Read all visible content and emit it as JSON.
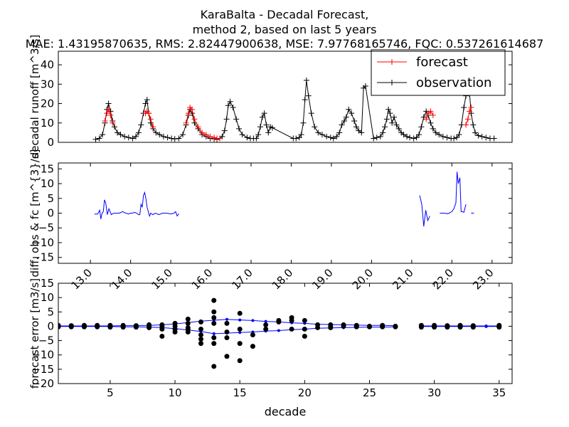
{
  "header": {
    "title_line1": "KaraBalta  - Decadal Forecast,",
    "title_line2": "method 2, based on last 5 years",
    "metrics": "MAE: 1.43195870635,   RMS: 2.82447900638,   MSE: 7.97768165746,   FQC: 0.537261614687"
  },
  "colors": {
    "forecast": "#ff0000",
    "observation": "#000000",
    "difference": "#0000ff",
    "error_points": "#000000",
    "error_band": "#0000ff"
  },
  "chart_data": [
    {
      "type": "line",
      "panel": "top",
      "ylabel": "decadal runoff [m^3/s]",
      "xlabel": "",
      "xlim": [
        2012.2,
        2023.5
      ],
      "ylim": [
        0,
        47
      ],
      "yticks": [
        0,
        10,
        20,
        30,
        40
      ],
      "grid": false,
      "legend": {
        "placement": "top-right",
        "entries": [
          "forecast",
          "observation"
        ]
      },
      "series": [
        {
          "name": "observation",
          "x": [
            2013.13,
            2013.22,
            2013.3,
            2013.36,
            2013.41,
            2013.45,
            2013.5,
            2013.55,
            2013.6,
            2013.67,
            2013.75,
            2013.85,
            2013.95,
            2014.05,
            2014.13,
            2014.2,
            2014.26,
            2014.32,
            2014.37,
            2014.41,
            2014.45,
            2014.5,
            2014.56,
            2014.63,
            2014.72,
            2014.82,
            2014.92,
            2015.02,
            2015.1,
            2015.2,
            2015.3,
            2015.38,
            2015.44,
            2015.48,
            2015.53,
            2015.59,
            2015.68,
            2015.78,
            2015.88,
            2015.98,
            2016.08,
            2016.15,
            2016.22,
            2016.28,
            2016.34,
            2016.39,
            2016.43,
            2016.48,
            2016.55,
            2016.63,
            2016.7,
            2016.78,
            2016.9,
            2016.98,
            2017.06,
            2017.13,
            2017.18,
            2017.23,
            2017.28,
            2017.33,
            2017.38,
            2017.43,
            2017.48,
            2017.53,
            2018.05,
            2018.12,
            2018.2,
            2018.25,
            2018.3,
            2018.34,
            2018.38,
            2018.43,
            2018.5,
            2018.58,
            2018.67,
            2018.77,
            2018.88,
            2018.98,
            2019.05,
            2019.13,
            2019.2,
            2019.26,
            2019.32,
            2019.37,
            2019.43,
            2019.5,
            2019.57,
            2019.62,
            2019.68,
            2019.75,
            2019.8,
            2019.85,
            2020.05,
            2020.13,
            2020.22,
            2020.28,
            2020.33,
            2020.38,
            2020.42,
            2020.46,
            2020.51,
            2020.56,
            2020.62,
            2020.68,
            2020.74,
            2020.8,
            2020.88,
            2020.95,
            2021.05,
            2021.12,
            2021.18,
            2021.24,
            2021.3,
            2021.36,
            2021.41,
            2021.47,
            2021.53,
            2021.6,
            2021.68,
            2021.78,
            2021.88,
            2021.98,
            2022.05,
            2022.12,
            2022.18,
            2022.24,
            2022.3,
            2022.35,
            2022.4,
            2022.44,
            2022.48,
            2022.53,
            2022.58,
            2022.66,
            2022.75,
            2022.85,
            2022.95,
            2023.05
          ],
          "y": [
            1.5,
            2,
            4,
            10,
            17,
            20,
            16,
            11,
            8,
            5,
            4,
            3,
            2.5,
            2,
            3,
            5,
            9,
            15,
            20,
            22,
            15,
            10,
            7,
            5,
            4,
            3,
            2.5,
            2,
            1.8,
            2,
            4,
            9,
            14,
            17,
            15,
            10,
            7,
            4,
            3,
            2,
            1.8,
            1.5,
            2,
            3,
            6,
            12,
            19,
            21,
            18,
            12,
            7,
            4,
            2.5,
            2,
            2,
            2,
            4,
            8,
            13,
            15,
            9,
            5,
            8,
            7.5,
            2,
            2,
            2.5,
            4,
            10,
            22,
            32,
            24,
            15,
            8,
            5,
            4,
            3,
            2.5,
            2,
            3,
            5,
            9,
            11,
            13,
            17,
            15,
            11,
            8,
            6,
            5,
            28,
            29,
            2,
            2.5,
            3,
            5,
            8,
            12,
            17,
            15,
            10,
            13,
            9,
            7,
            5,
            4,
            3,
            2.5,
            2,
            2.5,
            4,
            8,
            13,
            16,
            14,
            10,
            7,
            5,
            4,
            3,
            2.5,
            2,
            2,
            2.5,
            4,
            9,
            18,
            24,
            30,
            25,
            15,
            9,
            5,
            3.5,
            3,
            2.5,
            2,
            2
          ]
        },
        {
          "name": "forecast",
          "x": [
            2013.36,
            2013.41,
            2013.45,
            2013.5,
            2013.55,
            2014.37,
            2014.41,
            2014.45,
            2014.5,
            2014.56,
            2015.38,
            2015.44,
            2015.48,
            2015.53,
            2015.59,
            2015.68,
            2015.78,
            2015.88,
            2015.98,
            2016.08,
            2016.15,
            2016.22,
            2021.36,
            2021.41,
            2021.47,
            2021.53,
            2022.35,
            2022.4,
            2022.44,
            2022.48
          ],
          "y": [
            11,
            15,
            17,
            14,
            10,
            15,
            16,
            15,
            12,
            8,
            10,
            15,
            18,
            17,
            12,
            8,
            5,
            4,
            3,
            2.5,
            2,
            2,
            12,
            15,
            16,
            14,
            9,
            12,
            16,
            18
          ]
        }
      ]
    },
    {
      "type": "line",
      "panel": "middle",
      "ylabel": "diff. obs & fc [m^{3}/s]",
      "xlabel": "",
      "xlim": [
        2012.2,
        2023.5
      ],
      "ylim": [
        -17,
        17
      ],
      "yticks": [
        -15,
        -10,
        -5,
        0,
        5,
        10,
        15
      ],
      "xtick_labels": [
        "13.0",
        "14.0",
        "15.0",
        "16.0",
        "17.0",
        "18.0",
        "19.0",
        "20.0",
        "21.0",
        "22.0",
        "23.0"
      ],
      "xtick_values": [
        2013,
        2014,
        2015,
        2016,
        2017,
        2018,
        2019,
        2020,
        2021,
        2022,
        2023
      ],
      "grid": false,
      "series": [
        {
          "name": "",
          "segments": [
            {
              "x": [
                2013.1,
                2013.18,
                2013.23,
                2013.26,
                2013.29,
                2013.32,
                2013.35,
                2013.38,
                2013.42,
                2013.46,
                2013.52,
                2013.58,
                2013.65,
                2013.72,
                2013.8,
                2013.88,
                2013.95,
                2014.0,
                2014.05,
                2014.1,
                2014.15,
                2014.2,
                2014.23,
                2014.26,
                2014.29,
                2014.32,
                2014.35,
                2014.38,
                2014.41,
                2014.44,
                2014.47,
                2014.5,
                2014.55,
                2014.62,
                2014.7,
                2014.8,
                2014.9,
                2015.0,
                2015.08,
                2015.12,
                2015.16,
                2015.2
              ],
              "y": [
                -0.3,
                -0.3,
                1,
                -2,
                0,
                0.5,
                4.5,
                3.5,
                -0.5,
                1.5,
                -0.5,
                0,
                0,
                0,
                0.5,
                0,
                -0.3,
                0,
                0,
                0.3,
                0,
                -0.5,
                -0.5,
                3,
                2,
                6,
                7,
                5,
                2,
                0.5,
                -1,
                0,
                -0.5,
                0,
                -0.5,
                0,
                0,
                -0.3,
                0,
                0.5,
                -1,
                -0.2
              ]
            },
            {
              "x": [
                2021.2,
                2021.25,
                2021.3,
                2021.35,
                2021.4,
                2021.45
              ],
              "y": [
                6,
                3,
                -4.5,
                1,
                -2.5,
                -1
              ]
            },
            {
              "x": [
                2021.7,
                2021.8,
                2021.9,
                2022.0,
                2022.05,
                2022.1,
                2022.13,
                2022.16,
                2022.2,
                2022.23,
                2022.26,
                2022.3,
                2022.35
              ],
              "y": [
                0,
                0,
                -0.2,
                0.5,
                1.5,
                3.5,
                14,
                10,
                12,
                0.5,
                0.5,
                0.3,
                3
              ]
            },
            {
              "x": [
                2022.48,
                2022.55
              ],
              "y": [
                0,
                0
              ]
            }
          ]
        }
      ]
    },
    {
      "type": "scatter",
      "panel": "bottom",
      "ylabel": "forecast error [m3/s]",
      "xlabel": "decade",
      "xlim": [
        1,
        36
      ],
      "ylim": [
        -20,
        15
      ],
      "xticks": [
        5,
        10,
        15,
        20,
        25,
        30,
        35
      ],
      "yticks": [
        -20,
        -15,
        -10,
        -5,
        0,
        5,
        10,
        15
      ],
      "grid": false,
      "points": [
        [
          1,
          0
        ],
        [
          1,
          -0.2
        ],
        [
          1,
          0.3
        ],
        [
          2,
          0
        ],
        [
          2,
          -0.2
        ],
        [
          2,
          0.2
        ],
        [
          3,
          0
        ],
        [
          3,
          -0.2
        ],
        [
          3,
          0.3
        ],
        [
          4,
          0
        ],
        [
          4,
          -0.2
        ],
        [
          4,
          0.3
        ],
        [
          5,
          0
        ],
        [
          5,
          -0.3
        ],
        [
          5,
          0.3
        ],
        [
          6,
          0
        ],
        [
          6,
          -0.3
        ],
        [
          6,
          0.3
        ],
        [
          7,
          0
        ],
        [
          7,
          -0.3
        ],
        [
          7,
          0.2
        ],
        [
          8,
          0
        ],
        [
          8,
          -0.5
        ],
        [
          8,
          0.5
        ],
        [
          9,
          0
        ],
        [
          9,
          -3.5
        ],
        [
          9,
          -1
        ],
        [
          9,
          0.5
        ],
        [
          10,
          -1
        ],
        [
          10,
          -2
        ],
        [
          10,
          0
        ],
        [
          10,
          1
        ],
        [
          11,
          2.5
        ],
        [
          11,
          -1
        ],
        [
          11,
          -2
        ],
        [
          11,
          1
        ],
        [
          11,
          -0.5
        ],
        [
          12,
          -4.5
        ],
        [
          12,
          -6
        ],
        [
          12,
          -3
        ],
        [
          12,
          1.5
        ],
        [
          12,
          -1
        ],
        [
          13,
          9
        ],
        [
          13,
          5
        ],
        [
          13,
          3
        ],
        [
          13,
          1
        ],
        [
          13,
          -4
        ],
        [
          13,
          -6
        ],
        [
          13,
          -14
        ],
        [
          14,
          -10.5
        ],
        [
          14,
          -4
        ],
        [
          14,
          -2
        ],
        [
          14,
          1
        ],
        [
          15,
          4.5
        ],
        [
          15,
          -1
        ],
        [
          15,
          -6
        ],
        [
          15,
          -12
        ],
        [
          16,
          -7
        ],
        [
          16,
          -3
        ],
        [
          17,
          -1
        ],
        [
          17,
          0.5
        ],
        [
          18,
          1.5
        ],
        [
          18,
          2
        ],
        [
          19,
          3
        ],
        [
          19,
          2
        ],
        [
          19,
          -1
        ],
        [
          20,
          2
        ],
        [
          20,
          -3.5
        ],
        [
          20,
          -1
        ],
        [
          21,
          0.5
        ],
        [
          21,
          -0.5
        ],
        [
          22,
          0.5
        ],
        [
          22,
          -0.5
        ],
        [
          22,
          0
        ],
        [
          23,
          0.5
        ],
        [
          23,
          0
        ],
        [
          24,
          0
        ],
        [
          24,
          -0.2
        ],
        [
          24,
          0.3
        ],
        [
          25,
          0
        ],
        [
          25,
          -0.2
        ],
        [
          26,
          0
        ],
        [
          26,
          0.3
        ],
        [
          26,
          -0.2
        ],
        [
          27,
          0
        ],
        [
          27,
          -0.2
        ],
        [
          29,
          0
        ],
        [
          29,
          0.3
        ],
        [
          29,
          -0.3
        ],
        [
          30,
          0
        ],
        [
          30,
          -0.3
        ],
        [
          30,
          0.3
        ],
        [
          31,
          0
        ],
        [
          31,
          0.2
        ],
        [
          31,
          -0.3
        ],
        [
          32,
          0
        ],
        [
          32,
          -0.3
        ],
        [
          32,
          0.3
        ],
        [
          33,
          0
        ],
        [
          33,
          -0.3
        ],
        [
          33,
          0.2
        ],
        [
          35,
          0
        ],
        [
          35,
          -0.3
        ],
        [
          35,
          0.3
        ]
      ],
      "band": {
        "x": [
          1,
          2,
          3,
          4,
          5,
          6,
          7,
          8,
          9,
          10,
          11,
          12,
          13,
          14,
          15,
          16,
          17,
          18,
          19,
          20,
          21,
          22,
          23,
          24,
          25,
          26,
          27,
          29,
          30,
          31,
          32,
          33,
          34,
          35
        ],
        "upper": [
          0.1,
          0.1,
          0.1,
          0.1,
          0.1,
          0.2,
          0.2,
          0.3,
          0.5,
          0.8,
          1.3,
          1.8,
          2.1,
          2.4,
          2.2,
          2.0,
          1.7,
          1.5,
          1.2,
          1.0,
          0.7,
          0.6,
          0.5,
          0.4,
          0.3,
          0.3,
          0.2,
          0.1,
          0.1,
          0.1,
          0.1,
          0.1,
          0.1,
          0.1
        ],
        "lower": [
          -0.1,
          -0.1,
          -0.1,
          -0.1,
          -0.1,
          -0.2,
          -0.2,
          -0.3,
          -0.5,
          -0.8,
          -1.3,
          -1.8,
          -2.6,
          -2.4,
          -2.2,
          -2.0,
          -1.7,
          -1.5,
          -1.2,
          -1.0,
          -0.7,
          -0.6,
          -0.5,
          -0.4,
          -0.3,
          -0.3,
          -0.2,
          -0.1,
          -0.1,
          -0.1,
          -0.1,
          -0.1,
          -0.1,
          -0.1
        ]
      }
    }
  ]
}
